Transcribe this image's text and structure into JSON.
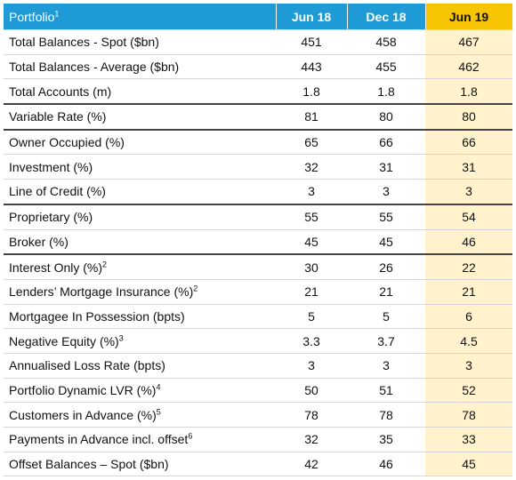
{
  "header": {
    "title": "Portfolio",
    "note": "1",
    "columns": [
      "Jun 18",
      "Dec 18",
      "Jun 19"
    ]
  },
  "table": {
    "groups": [
      {
        "rows": [
          {
            "label": "Total Balances - Spot ($bn)",
            "values": [
              451,
              458,
              467
            ]
          },
          {
            "label": "Total Balances - Average ($bn)",
            "values": [
              443,
              455,
              462
            ]
          },
          {
            "label": "Total Accounts (m)",
            "values": [
              1.8,
              1.8,
              1.8
            ]
          }
        ]
      },
      {
        "rows": [
          {
            "label": "Variable Rate (%)",
            "values": [
              81,
              80,
              80
            ]
          }
        ]
      },
      {
        "rows": [
          {
            "label": "Owner Occupied (%)",
            "values": [
              65,
              66,
              66
            ]
          },
          {
            "label": "Investment (%)",
            "values": [
              32,
              31,
              31
            ]
          },
          {
            "label": "Line of Credit (%)",
            "values": [
              3,
              3,
              3
            ]
          }
        ]
      },
      {
        "rows": [
          {
            "label": "Proprietary (%)",
            "values": [
              55,
              55,
              54
            ]
          },
          {
            "label": "Broker (%)",
            "values": [
              45,
              45,
              46
            ]
          }
        ]
      },
      {
        "rows": [
          {
            "label": "Interest Only (%)",
            "note": "2",
            "values": [
              30,
              26,
              22
            ]
          },
          {
            "label": "Lenders’ Mortgage Insurance (%)",
            "note": "2",
            "values": [
              21,
              21,
              21
            ]
          },
          {
            "label": "Mortgagee In Possession (bpts)",
            "values": [
              5,
              5,
              6
            ]
          },
          {
            "label": "Negative Equity (%)",
            "note": "3",
            "values": [
              3.3,
              3.7,
              4.5
            ]
          },
          {
            "label": "Annualised Loss Rate (bpts)",
            "values": [
              3,
              3,
              3
            ]
          },
          {
            "label": "Portfolio Dynamic LVR (%)",
            "note": "4",
            "values": [
              50,
              51,
              52
            ]
          },
          {
            "label": "Customers in Advance (%)",
            "note": "5",
            "values": [
              78,
              78,
              78
            ]
          },
          {
            "label": "Payments in Advance incl. offset",
            "note": "6",
            "values": [
              32,
              35,
              33
            ]
          },
          {
            "label": "Offset Balances – Spot ($bn)",
            "values": [
              42,
              46,
              45
            ]
          }
        ]
      }
    ]
  }
}
